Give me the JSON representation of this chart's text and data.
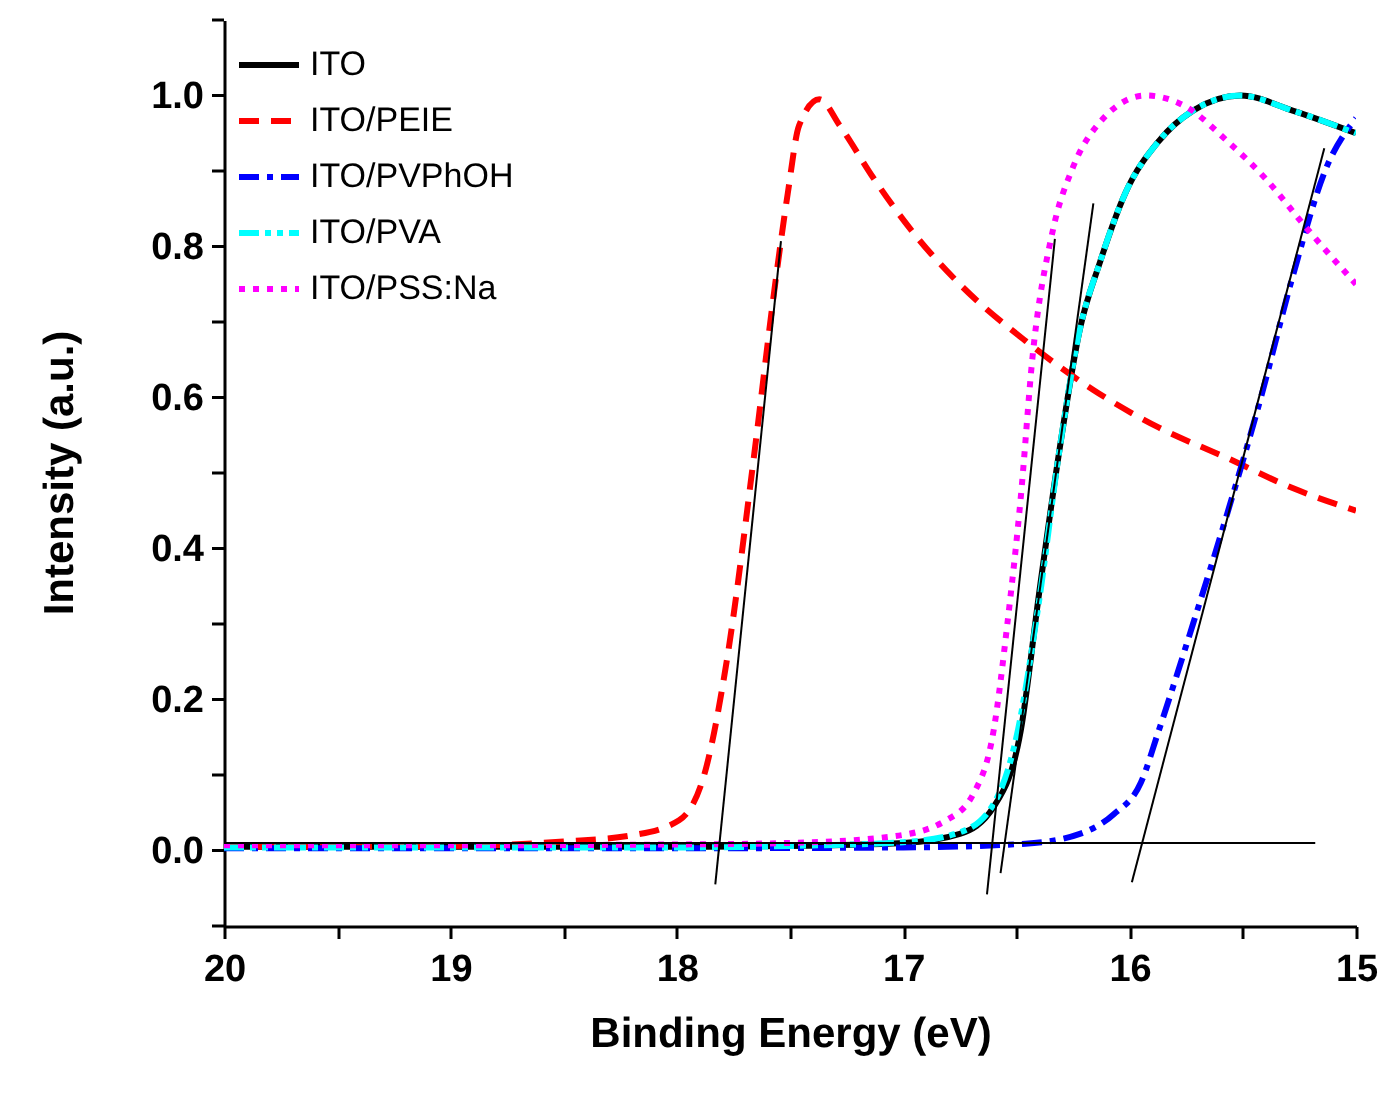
{
  "chart_data": {
    "type": "line",
    "xlabel": "Binding Energy (eV)",
    "ylabel": "Intensity (a.u.)",
    "xlim": [
      20,
      15
    ],
    "ylim": [
      -0.1,
      1.1
    ],
    "xticks": [
      20,
      {
        "value": 19.5,
        "label": null
      },
      19,
      {
        "value": 18.5,
        "label": null
      },
      18,
      {
        "value": 17.5,
        "label": null
      },
      17,
      {
        "value": 16.5,
        "label": null
      },
      16,
      {
        "value": 15.5,
        "label": null
      },
      15
    ],
    "yticks": [
      {
        "value": -0.1,
        "label": null
      },
      {
        "value": 0,
        "label": "0.0"
      },
      {
        "value": 0.1,
        "label": null
      },
      {
        "value": 0.2,
        "label": "0.2"
      },
      {
        "value": 0.3,
        "label": null
      },
      {
        "value": 0.4,
        "label": "0.4"
      },
      {
        "value": 0.5,
        "label": null
      },
      {
        "value": 0.6,
        "label": "0.6"
      },
      {
        "value": 0.7,
        "label": null
      },
      {
        "value": 0.8,
        "label": "0.8"
      },
      {
        "value": 0.9,
        "label": null
      },
      {
        "value": 1,
        "label": "1.0"
      },
      {
        "value": 1.1,
        "label": null
      }
    ],
    "grid": false,
    "legend": "top left",
    "marker": "none",
    "series": [
      {
        "name": "ITO",
        "color": "#000000",
        "line_style": "solid",
        "x": [
          20,
          19,
          18,
          17.5,
          17,
          16.75,
          16.6,
          16.48,
          16.4,
          16.31,
          16.22,
          16.13,
          16.02,
          15.87,
          15.72,
          15.51,
          15.28,
          15.0
        ],
        "values": [
          0.005,
          0.005,
          0.005,
          0.006,
          0.01,
          0.022,
          0.058,
          0.16,
          0.34,
          0.53,
          0.69,
          0.78,
          0.87,
          0.94,
          0.98,
          1.0,
          0.98,
          0.95
        ]
      },
      {
        "name": "ITO/PEIE",
        "color": "#ff0000",
        "line_style": "dashed",
        "x": [
          20,
          19,
          18.5,
          18.2,
          17.99,
          17.87,
          17.78,
          17.66,
          17.57,
          17.51,
          17.46,
          17.37,
          17.28,
          17.13,
          16.96,
          16.75,
          16.46,
          16.16,
          15.87,
          15.57,
          15.28,
          15.0
        ],
        "values": [
          0.005,
          0.006,
          0.012,
          0.02,
          0.04,
          0.11,
          0.25,
          0.52,
          0.74,
          0.87,
          0.96,
          0.995,
          0.96,
          0.89,
          0.82,
          0.75,
          0.675,
          0.61,
          0.56,
          0.52,
          0.48,
          0.45
        ]
      },
      {
        "name": "ITO/PVPhOH",
        "color": "#0000ff",
        "line_style": "dashdot",
        "x": [
          20,
          19,
          18,
          17,
          16.46,
          16.22,
          16.07,
          15.95,
          15.87,
          15.72,
          15.57,
          15.42,
          15.28,
          15.13,
          15.0
        ],
        "values": [
          0.003,
          0.003,
          0.003,
          0.004,
          0.009,
          0.022,
          0.048,
          0.09,
          0.16,
          0.3,
          0.445,
          0.6,
          0.76,
          0.905,
          0.97
        ]
      },
      {
        "name": "ITO/PVA",
        "color": "#00ffff",
        "line_style": "dashdotdot",
        "x": [
          20,
          19,
          18,
          17.5,
          17,
          16.75,
          16.6,
          16.5,
          16.4,
          16.31,
          16.22,
          16.13,
          16.02,
          15.87,
          15.72,
          15.51,
          15.28,
          15.0
        ],
        "values": [
          0.004,
          0.004,
          0.004,
          0.006,
          0.011,
          0.024,
          0.062,
          0.15,
          0.33,
          0.53,
          0.69,
          0.78,
          0.87,
          0.94,
          0.98,
          1.0,
          0.98,
          0.95
        ]
      },
      {
        "name": "ITO/PSS:Na",
        "color": "#ff00ff",
        "line_style": "dotted",
        "x": [
          20,
          19,
          18,
          17.5,
          17.04,
          16.81,
          16.69,
          16.6,
          16.54,
          16.48,
          16.43,
          16.34,
          16.25,
          16.13,
          15.93,
          15.75,
          15.57,
          15.4,
          15.22,
          15.0
        ],
        "values": [
          0.007,
          0.007,
          0.008,
          0.01,
          0.019,
          0.04,
          0.075,
          0.16,
          0.3,
          0.47,
          0.65,
          0.82,
          0.905,
          0.965,
          1.0,
          0.985,
          0.94,
          0.89,
          0.825,
          0.75
        ]
      },
      {
        "color": "#000000",
        "line_style": "solid",
        "x": [
          20,
          15.18
        ],
        "values": [
          0.01,
          0.01
        ]
      },
      {
        "color": "#000000",
        "line_style": "solid",
        "x": [
          17.83,
          17.54
        ],
        "values": [
          -0.045,
          0.807
        ]
      },
      {
        "color": "#000000",
        "line_style": "solid",
        "x": [
          16.63,
          16.33
        ],
        "values": [
          -0.058,
          0.81
        ]
      },
      {
        "color": "#000000",
        "line_style": "solid",
        "x": [
          16.57,
          16.16
        ],
        "values": [
          -0.03,
          0.857
        ]
      },
      {
        "color": "#000000",
        "line_style": "solid",
        "x": [
          15.99,
          15.14
        ],
        "values": [
          -0.042,
          0.93
        ]
      }
    ]
  }
}
